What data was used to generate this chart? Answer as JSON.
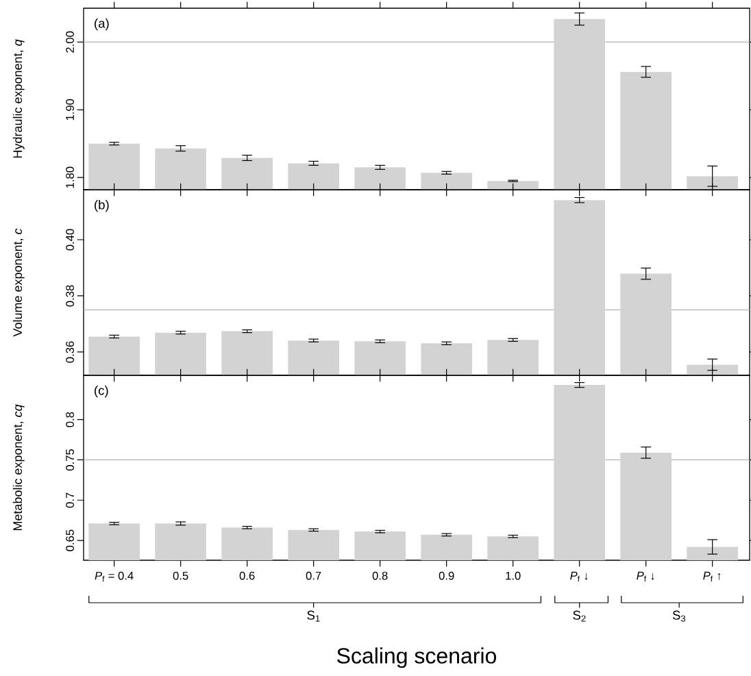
{
  "chart_data": [
    {
      "type": "bar",
      "categories": [
        null,
        null,
        null,
        null,
        null,
        null,
        null,
        null,
        null,
        null
      ],
      "values": [
        1.85,
        1.843,
        1.829,
        1.821,
        1.815,
        1.807,
        1.795,
        2.034,
        1.956,
        1.802
      ],
      "errors": [
        0.002,
        0.004,
        0.004,
        0.003,
        0.003,
        0.002,
        0.001,
        0.009,
        0.008,
        0.015
      ],
      "color": "#d3d3d3",
      "ylim": [
        1.782,
        2.05
      ],
      "yticks": [
        {
          "value": 1.8,
          "label": "1.80"
        },
        {
          "value": 1.9,
          "label": "1.90"
        },
        {
          "value": 2.0,
          "label": "2.00"
        }
      ],
      "ylabel": "Hydraulic exponent, *q*",
      "tick_labels": "y",
      "ref_lines": [
        {
          "axis": "y",
          "value": 2.0,
          "color": "#b4b4b4"
        }
      ],
      "annotations": [
        "(a)"
      ]
    },
    {
      "type": "bar",
      "categories": [
        null,
        null,
        null,
        null,
        null,
        null,
        null,
        null,
        null,
        null
      ],
      "values": [
        0.3655,
        0.3669,
        0.3674,
        0.3641,
        0.3638,
        0.3631,
        0.3643,
        0.4141,
        0.3879,
        0.3555
      ],
      "errors": [
        0.0005,
        0.0005,
        0.0005,
        0.0005,
        0.0005,
        0.0005,
        0.0005,
        0.0009,
        0.002,
        0.002
      ],
      "color": "#d3d3d3",
      "ylim": [
        0.3517,
        0.4178
      ],
      "yticks": [
        {
          "value": 0.36,
          "label": "0.36"
        },
        {
          "value": 0.38,
          "label": "0.38"
        },
        {
          "value": 0.4,
          "label": "0.40"
        }
      ],
      "ylabel": "Volume exponent, *c*",
      "tick_labels": "y",
      "ref_lines": [
        {
          "axis": "y",
          "value": 0.375,
          "color": "#b4b4b4"
        }
      ],
      "annotations": [
        "(b)"
      ]
    },
    {
      "type": "bar",
      "categories": [
        "*P*$_{f}$ = 0.4",
        "0.5",
        "0.6",
        "0.7",
        "0.8",
        "0.9",
        "1.0",
        "*P*$_{f}$ ↓",
        "*P*$_{f}$ ↓",
        "*P*$_{f}$ ↑"
      ],
      "values": [
        0.671,
        0.671,
        0.666,
        0.663,
        0.661,
        0.657,
        0.655,
        0.843,
        0.759,
        0.642
      ],
      "errors": [
        0.0015,
        0.002,
        0.0015,
        0.0015,
        0.0015,
        0.0015,
        0.0015,
        0.003,
        0.007,
        0.009
      ],
      "color": "#d3d3d3",
      "ylim": [
        0.6254,
        0.855
      ],
      "yticks": [
        0.65,
        0.7,
        0.75,
        0.8
      ],
      "ylabel": "Metabolic exponent, *cq*",
      "xlabel": "Scaling scenario",
      "ref_lines": [
        {
          "axis": "y",
          "value": 0.75,
          "color": "#b4b4b4"
        }
      ],
      "annotations": [
        "(c)",
        "S$_{1}$",
        "S$_{2}$",
        "S$_{3}$"
      ]
    }
  ]
}
